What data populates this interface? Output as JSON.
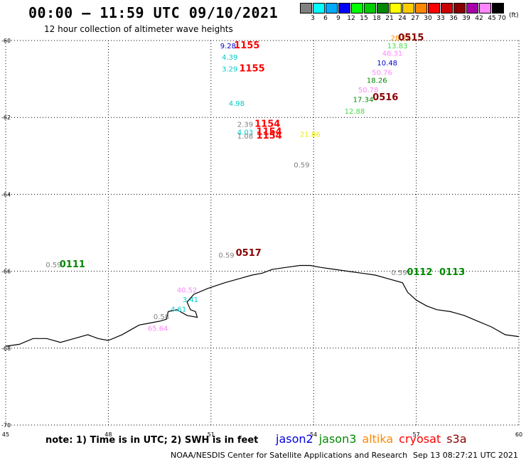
{
  "title": "00:00 – 11:59 UTC 09/10/2021",
  "subtitle": "12 hour collection of altimeter wave heights",
  "scale": {
    "unit": "(ft)",
    "bins": [
      {
        "label": "3",
        "color": "#808080"
      },
      {
        "label": "6",
        "color": "#00ffff"
      },
      {
        "label": "9",
        "color": "#00aaff"
      },
      {
        "label": "12",
        "color": "#0000ff"
      },
      {
        "label": "15",
        "color": "#00ff00"
      },
      {
        "label": "18",
        "color": "#00cc00"
      },
      {
        "label": "21",
        "color": "#008800"
      },
      {
        "label": "24",
        "color": "#ffff00"
      },
      {
        "label": "27",
        "color": "#ffcc00"
      },
      {
        "label": "30",
        "color": "#ff8800"
      },
      {
        "label": "33",
        "color": "#ff0000"
      },
      {
        "label": "36",
        "color": "#cc0000"
      },
      {
        "label": "39",
        "color": "#880000"
      },
      {
        "label": "42",
        "color": "#aa00aa"
      },
      {
        "label": "45",
        "color": "#ff88ff"
      },
      {
        "label": "70",
        "color": "#000000"
      }
    ]
  },
  "map": {
    "lon_min": 45,
    "lon_max": 60,
    "lat_min": -70,
    "lat_max": -60,
    "lon_ticks": [
      "45",
      "48",
      "51",
      "54",
      "57",
      "60"
    ],
    "lat_ticks": [
      "-60",
      "-62",
      "-64",
      "-66",
      "-68",
      "-70"
    ],
    "wave_heights": [
      {
        "lon": 51.5,
        "lat": -60.2,
        "text": "9.28",
        "color": "#0000cc"
      },
      {
        "lon": 51.55,
        "lat": -60.5,
        "text": "4.39",
        "color": "#00cccc"
      },
      {
        "lon": 51.55,
        "lat": -60.8,
        "text": "3.29",
        "color": "#00cccc"
      },
      {
        "lon": 51.75,
        "lat": -61.7,
        "text": "4.98",
        "color": "#00cccc"
      },
      {
        "lon": 52.0,
        "lat": -62.25,
        "text": "2.39",
        "color": "#808080"
      },
      {
        "lon": 52.0,
        "lat": -62.45,
        "text": "4.03",
        "color": "#00cccc"
      },
      {
        "lon": 52.0,
        "lat": -62.55,
        "text": "1.08",
        "color": "#808080"
      },
      {
        "lon": 53.9,
        "lat": -62.5,
        "text": "21.86",
        "color": "#eeee00"
      },
      {
        "lon": 53.65,
        "lat": -63.3,
        "text": "0.59",
        "color": "#808080"
      },
      {
        "lon": 56.55,
        "lat": -60.0,
        "text": "28.26",
        "color": "#ff8800"
      },
      {
        "lon": 56.45,
        "lat": -60.2,
        "text": "13.83",
        "color": "#44dd44"
      },
      {
        "lon": 56.3,
        "lat": -60.4,
        "text": "46.31",
        "color": "#ff88ff"
      },
      {
        "lon": 56.15,
        "lat": -60.65,
        "text": "10.48",
        "color": "#0000cc"
      },
      {
        "lon": 56.0,
        "lat": -60.9,
        "text": "50.76",
        "color": "#ff88ff"
      },
      {
        "lon": 55.85,
        "lat": -61.1,
        "text": "18.26",
        "color": "#008800"
      },
      {
        "lon": 55.6,
        "lat": -61.35,
        "text": "50.78",
        "color": "#ff88ff"
      },
      {
        "lon": 55.45,
        "lat": -61.6,
        "text": "17.34",
        "color": "#008800"
      },
      {
        "lon": 55.2,
        "lat": -61.9,
        "text": "12.88",
        "color": "#44dd44"
      },
      {
        "lon": 46.4,
        "lat": -65.9,
        "text": "0.59",
        "color": "#808080"
      },
      {
        "lon": 51.45,
        "lat": -65.65,
        "text": "0.59",
        "color": "#808080"
      },
      {
        "lon": 56.5,
        "lat": -66.1,
        "text": "0.59",
        "color": "#808080"
      },
      {
        "lon": 50.3,
        "lat": -66.55,
        "text": "40.52",
        "color": "#ff88ff"
      },
      {
        "lon": 50.4,
        "lat": -66.8,
        "text": "3.41",
        "color": "#00cccc"
      },
      {
        "lon": 50.05,
        "lat": -67.05,
        "text": "4.61",
        "color": "#00cccc"
      },
      {
        "lon": 49.45,
        "lat": -67.55,
        "text": "65.64",
        "color": "#ff88ff"
      },
      {
        "lon": 49.55,
        "lat": -67.25,
        "text": "0.58",
        "color": "#808080"
      }
    ],
    "pass_times": [
      {
        "lon": 52.05,
        "lat": -60.2,
        "text": "1155",
        "color": "#ff0000"
      },
      {
        "lon": 52.2,
        "lat": -60.8,
        "text": "1155",
        "color": "#ff0000"
      },
      {
        "lon": 52.65,
        "lat": -62.25,
        "text": "1154",
        "color": "#ff0000"
      },
      {
        "lon": 52.7,
        "lat": -62.45,
        "text": "1154",
        "color": "#ff0000"
      },
      {
        "lon": 52.7,
        "lat": -62.55,
        "text": "1154",
        "color": "#ff0000"
      },
      {
        "lon": 56.85,
        "lat": -60.0,
        "text": "0515",
        "color": "#880000"
      },
      {
        "lon": 56.1,
        "lat": -61.55,
        "text": "0516",
        "color": "#880000"
      },
      {
        "lon": 52.1,
        "lat": -65.6,
        "text": "0517",
        "color": "#880000"
      },
      {
        "lon": 46.95,
        "lat": -65.9,
        "text": "0111",
        "color": "#008800"
      },
      {
        "lon": 57.1,
        "lat": -66.1,
        "text": "0112",
        "color": "#008800"
      },
      {
        "lon": 58.05,
        "lat": -66.1,
        "text": "0113",
        "color": "#008800"
      }
    ],
    "coastline": [
      [
        45.0,
        -67.95
      ],
      [
        45.4,
        -67.9
      ],
      [
        45.8,
        -67.75
      ],
      [
        46.2,
        -67.75
      ],
      [
        46.6,
        -67.85
      ],
      [
        47.0,
        -67.75
      ],
      [
        47.4,
        -67.65
      ],
      [
        47.7,
        -67.75
      ],
      [
        48.0,
        -67.8
      ],
      [
        48.4,
        -67.65
      ],
      [
        48.7,
        -67.5
      ],
      [
        48.9,
        -67.4
      ],
      [
        49.2,
        -67.35
      ],
      [
        49.5,
        -67.3
      ],
      [
        49.7,
        -67.25
      ],
      [
        49.75,
        -67.05
      ],
      [
        50.0,
        -67.0
      ],
      [
        50.3,
        -67.15
      ],
      [
        50.6,
        -67.2
      ],
      [
        50.55,
        -67.05
      ],
      [
        50.4,
        -67.0
      ],
      [
        50.3,
        -66.8
      ],
      [
        50.5,
        -66.6
      ],
      [
        50.9,
        -66.45
      ],
      [
        51.4,
        -66.3
      ],
      [
        51.8,
        -66.2
      ],
      [
        52.2,
        -66.1
      ],
      [
        52.5,
        -66.05
      ],
      [
        52.8,
        -65.95
      ],
      [
        53.2,
        -65.9
      ],
      [
        53.6,
        -65.85
      ],
      [
        53.9,
        -65.85
      ],
      [
        54.2,
        -65.9
      ],
      [
        54.6,
        -65.95
      ],
      [
        55.0,
        -66.0
      ],
      [
        55.4,
        -66.05
      ],
      [
        55.8,
        -66.1
      ],
      [
        56.2,
        -66.2
      ],
      [
        56.6,
        -66.3
      ],
      [
        56.75,
        -66.55
      ],
      [
        57.0,
        -66.75
      ],
      [
        57.3,
        -66.9
      ],
      [
        57.6,
        -67.0
      ],
      [
        58.0,
        -67.05
      ],
      [
        58.4,
        -67.15
      ],
      [
        58.8,
        -67.3
      ],
      [
        59.2,
        -67.45
      ],
      [
        59.6,
        -67.65
      ],
      [
        60.0,
        -67.7
      ]
    ]
  },
  "note": "note: 1) Time is in UTC; 2) SWH is in feet",
  "legend": [
    {
      "name": "jason2",
      "color": "#0000dd"
    },
    {
      "name": "jason3",
      "color": "#008800"
    },
    {
      "name": "altika",
      "color": "#ff8800"
    },
    {
      "name": "cryosat",
      "color": "#ff0000"
    },
    {
      "name": "s3a",
      "color": "#880000"
    }
  ],
  "footer": "NOAA/NESDIS Center for Satellite Applications and Research",
  "footer_time": "Sep 13 08:27:21 UTC 2021"
}
